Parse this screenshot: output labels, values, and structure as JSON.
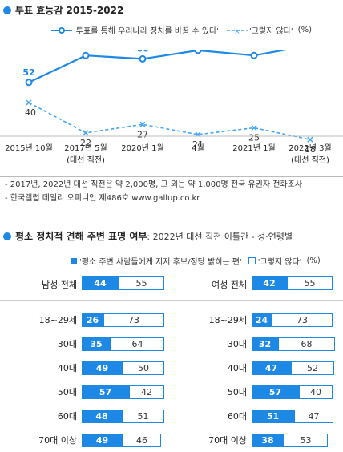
{
  "section1": {
    "title": "투표 효능감 2015-2022",
    "legend": {
      "series1": "'투표를 통해 우리나라 정치를 바꿀 수 있다'",
      "series2": "'그렇지 않다'",
      "unit": "(%)"
    },
    "notes": [
      "- 2017년, 2022년 대선 직전은 약 2,000명, 그 외는 약 1,000명 전국 유권자 전화조사",
      "- 한국갤럽 데일리 오피니언 제486호 www.gallup.co.kr"
    ]
  },
  "section2": {
    "title": "평소 정치적 견해 주변 표명 여부",
    "subtitle": ": 2022년 대선 직전 이틀간 - 성·연령별",
    "legend": {
      "series1": "'평소 주변 사람들에게 지지 후보/정당 밝히는 편'",
      "series2": "'그렇지 않다'",
      "unit": "(%)"
    }
  },
  "colors": {
    "accent": "#1e88e5",
    "dashed": "#42a5f5"
  },
  "chart_data": [
    {
      "type": "line",
      "title": "투표 효능감 2015-2022",
      "categories": [
        "2015년 10월",
        "2017년 5월\n(대선 직전)",
        "2020년 1월",
        "4월",
        "2021년 1월",
        "2022년 3월\n(대선 직전)"
      ],
      "series": [
        {
          "name": "'투표를 통해 우리나라 정치를 바꿀 수 있다'",
          "values": [
            52,
            68,
            66,
            71,
            68,
            74
          ],
          "style": "solid"
        },
        {
          "name": "'그렇지 않다'",
          "values": [
            40,
            22,
            27,
            21,
            25,
            18
          ],
          "style": "dashed"
        }
      ],
      "unit": "(%)",
      "ylim": [
        0,
        100
      ],
      "grid": false,
      "legend": "top-right"
    },
    {
      "type": "bar",
      "title": "평소 정치적 견해 주변 표명 여부",
      "subtitle": ": 2022년 대선 직전 이틀간 - 성·연령별",
      "panel": "남성",
      "categories": [
        "남성 전체",
        "18~29세",
        "30대",
        "40대",
        "50대",
        "60대",
        "70대 이상"
      ],
      "series": [
        {
          "name": "'평소 주변 사람들에게 지지 후보/정당 밝히는 편'",
          "values": [
            44,
            26,
            35,
            49,
            57,
            48,
            49
          ]
        },
        {
          "name": "'그렇지 않다'",
          "values": [
            55,
            73,
            64,
            50,
            42,
            51,
            46
          ]
        }
      ],
      "unit": "(%)",
      "stacked": true
    },
    {
      "type": "bar",
      "panel": "여성",
      "categories": [
        "여성 전체",
        "18~29세",
        "30대",
        "40대",
        "50대",
        "60대",
        "70대 이상"
      ],
      "series": [
        {
          "name": "'평소 주변 사람들에게 지지 후보/정당 밝히는 편'",
          "values": [
            42,
            24,
            32,
            47,
            57,
            51,
            38
          ]
        },
        {
          "name": "'그렇지 않다'",
          "values": [
            55,
            73,
            68,
            52,
            40,
            47,
            53
          ]
        }
      ],
      "unit": "(%)",
      "stacked": true
    }
  ]
}
